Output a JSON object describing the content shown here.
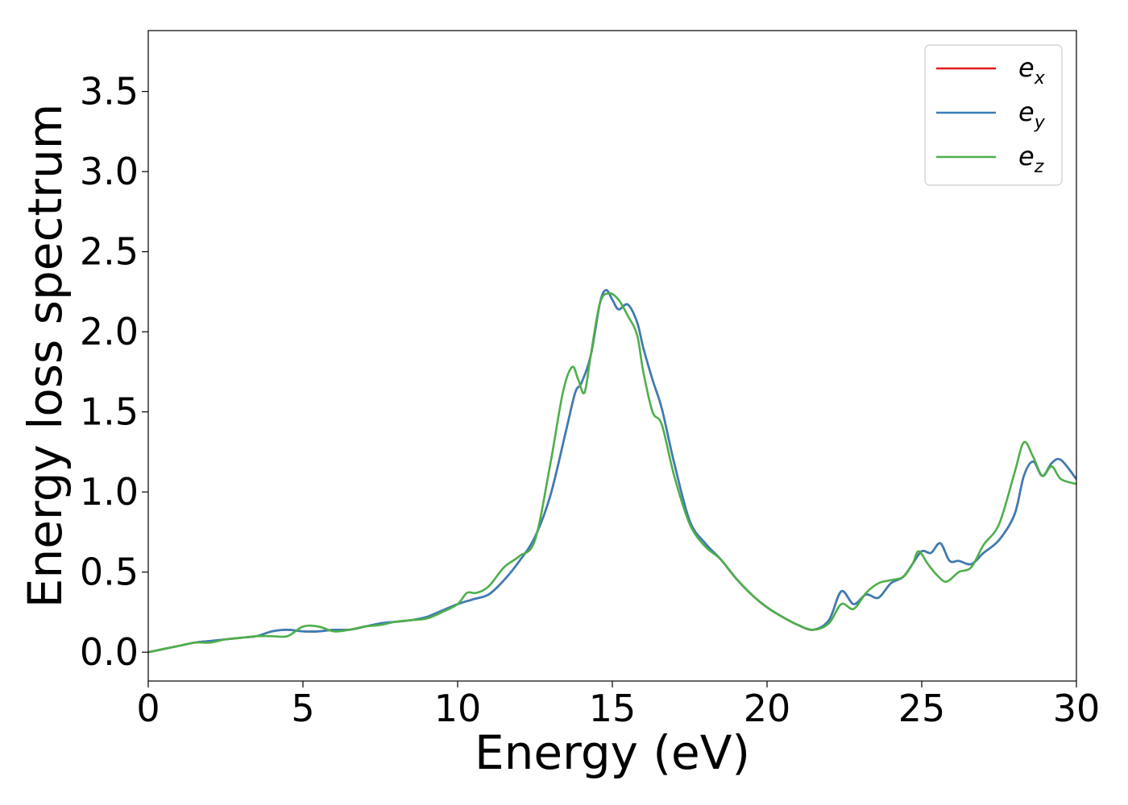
{
  "chart_data": {
    "type": "line",
    "xlabel": "Energy (eV)",
    "ylabel": "Energy loss spectrum",
    "xlim": [
      0,
      30
    ],
    "ylim": [
      -0.18,
      3.88
    ],
    "xticks": [
      0,
      5,
      10,
      15,
      20,
      25,
      30
    ],
    "xtick_labels": [
      "0",
      "5",
      "10",
      "15",
      "20",
      "25",
      "30"
    ],
    "yticks": [
      0.0,
      0.5,
      1.0,
      1.5,
      2.0,
      2.5,
      3.0,
      3.5
    ],
    "ytick_labels": [
      "0.0",
      "0.5",
      "1.0",
      "1.5",
      "2.0",
      "2.5",
      "3.0",
      "3.5"
    ],
    "grid": false,
    "legend_position": "top-right",
    "series": [
      {
        "name": "e_x",
        "label_base": "e",
        "label_sub": "x",
        "color": "#e41a1c",
        "x": [
          0,
          0.5,
          1,
          1.5,
          2,
          2.5,
          3,
          3.5,
          4,
          4.5,
          5,
          5.5,
          6,
          6.5,
          7,
          7.5,
          8,
          8.5,
          9,
          9.5,
          10,
          10.5,
          11,
          11.5,
          12,
          12.5,
          13,
          13.5,
          13.8,
          14,
          14.3,
          14.6,
          14.8,
          15,
          15.2,
          15.5,
          15.8,
          16,
          16.3,
          16.6,
          17,
          17.5,
          18,
          18.5,
          19,
          19.5,
          20,
          20.5,
          21,
          21.5,
          22,
          22.4,
          22.8,
          23.2,
          23.6,
          24,
          24.4,
          24.7,
          25,
          25.3,
          25.6,
          25.9,
          26.2,
          26.6,
          27,
          27.5,
          28,
          28.3,
          28.6,
          28.9,
          29.2,
          29.5,
          30
        ],
        "y": [
          0,
          0.02,
          0.04,
          0.06,
          0.07,
          0.08,
          0.09,
          0.1,
          0.13,
          0.14,
          0.13,
          0.13,
          0.14,
          0.14,
          0.16,
          0.18,
          0.19,
          0.2,
          0.22,
          0.26,
          0.3,
          0.33,
          0.36,
          0.45,
          0.57,
          0.72,
          0.98,
          1.38,
          1.62,
          1.68,
          1.85,
          2.18,
          2.26,
          2.2,
          2.14,
          2.17,
          2.06,
          1.9,
          1.7,
          1.52,
          1.18,
          0.82,
          0.68,
          0.58,
          0.46,
          0.36,
          0.28,
          0.22,
          0.17,
          0.14,
          0.2,
          0.38,
          0.3,
          0.36,
          0.34,
          0.43,
          0.47,
          0.55,
          0.63,
          0.62,
          0.68,
          0.57,
          0.57,
          0.55,
          0.62,
          0.7,
          0.86,
          1.1,
          1.19,
          1.1,
          1.18,
          1.2,
          1.08
        ]
      },
      {
        "name": "e_y",
        "label_base": "e",
        "label_sub": "y",
        "color": "#377eb8",
        "x": [
          0,
          0.5,
          1,
          1.5,
          2,
          2.5,
          3,
          3.5,
          4,
          4.5,
          5,
          5.5,
          6,
          6.5,
          7,
          7.5,
          8,
          8.5,
          9,
          9.5,
          10,
          10.5,
          11,
          11.5,
          12,
          12.5,
          13,
          13.5,
          13.8,
          14,
          14.3,
          14.6,
          14.8,
          15,
          15.2,
          15.5,
          15.8,
          16,
          16.3,
          16.6,
          17,
          17.5,
          18,
          18.5,
          19,
          19.5,
          20,
          20.5,
          21,
          21.5,
          22,
          22.4,
          22.8,
          23.2,
          23.6,
          24,
          24.4,
          24.7,
          25,
          25.3,
          25.6,
          25.9,
          26.2,
          26.6,
          27,
          27.5,
          28,
          28.3,
          28.6,
          28.9,
          29.2,
          29.5,
          30
        ],
        "y": [
          0,
          0.02,
          0.04,
          0.06,
          0.07,
          0.08,
          0.09,
          0.1,
          0.13,
          0.14,
          0.13,
          0.13,
          0.14,
          0.14,
          0.16,
          0.18,
          0.19,
          0.2,
          0.22,
          0.26,
          0.3,
          0.33,
          0.36,
          0.45,
          0.57,
          0.72,
          0.98,
          1.38,
          1.62,
          1.68,
          1.85,
          2.18,
          2.26,
          2.2,
          2.14,
          2.17,
          2.06,
          1.9,
          1.7,
          1.52,
          1.18,
          0.82,
          0.68,
          0.58,
          0.46,
          0.36,
          0.28,
          0.22,
          0.17,
          0.14,
          0.2,
          0.38,
          0.3,
          0.36,
          0.34,
          0.43,
          0.47,
          0.55,
          0.63,
          0.62,
          0.68,
          0.57,
          0.57,
          0.55,
          0.62,
          0.7,
          0.86,
          1.1,
          1.19,
          1.1,
          1.18,
          1.2,
          1.08
        ]
      },
      {
        "name": "e_z",
        "label_base": "e",
        "label_sub": "z",
        "color": "#4daf4a",
        "x": [
          0,
          0.5,
          1,
          1.5,
          2,
          2.5,
          3,
          3.5,
          4,
          4.5,
          5,
          5.5,
          6,
          6.5,
          7,
          7.5,
          8,
          8.5,
          9,
          9.5,
          10,
          10.3,
          10.6,
          11,
          11.5,
          12,
          12.5,
          13,
          13.4,
          13.7,
          13.9,
          14.1,
          14.3,
          14.6,
          14.9,
          15.2,
          15.5,
          15.8,
          16,
          16.3,
          16.6,
          17,
          17.5,
          18,
          18.5,
          19,
          19.5,
          20,
          20.5,
          21,
          21.5,
          22,
          22.4,
          22.8,
          23.2,
          23.6,
          24,
          24.4,
          24.7,
          24.9,
          25.2,
          25.5,
          25.8,
          26.2,
          26.6,
          27,
          27.5,
          28,
          28.3,
          28.6,
          28.9,
          29.2,
          29.5,
          30
        ],
        "y": [
          0,
          0.02,
          0.04,
          0.06,
          0.06,
          0.08,
          0.09,
          0.1,
          0.1,
          0.1,
          0.16,
          0.16,
          0.13,
          0.14,
          0.16,
          0.17,
          0.19,
          0.2,
          0.21,
          0.25,
          0.3,
          0.37,
          0.37,
          0.41,
          0.53,
          0.6,
          0.7,
          1.18,
          1.62,
          1.78,
          1.7,
          1.62,
          1.85,
          2.18,
          2.24,
          2.2,
          2.1,
          1.98,
          1.75,
          1.5,
          1.42,
          1.1,
          0.8,
          0.66,
          0.58,
          0.46,
          0.36,
          0.28,
          0.22,
          0.17,
          0.14,
          0.18,
          0.3,
          0.27,
          0.37,
          0.43,
          0.45,
          0.47,
          0.55,
          0.63,
          0.55,
          0.48,
          0.44,
          0.5,
          0.53,
          0.67,
          0.8,
          1.12,
          1.31,
          1.22,
          1.1,
          1.16,
          1.08,
          1.05
        ]
      }
    ]
  }
}
